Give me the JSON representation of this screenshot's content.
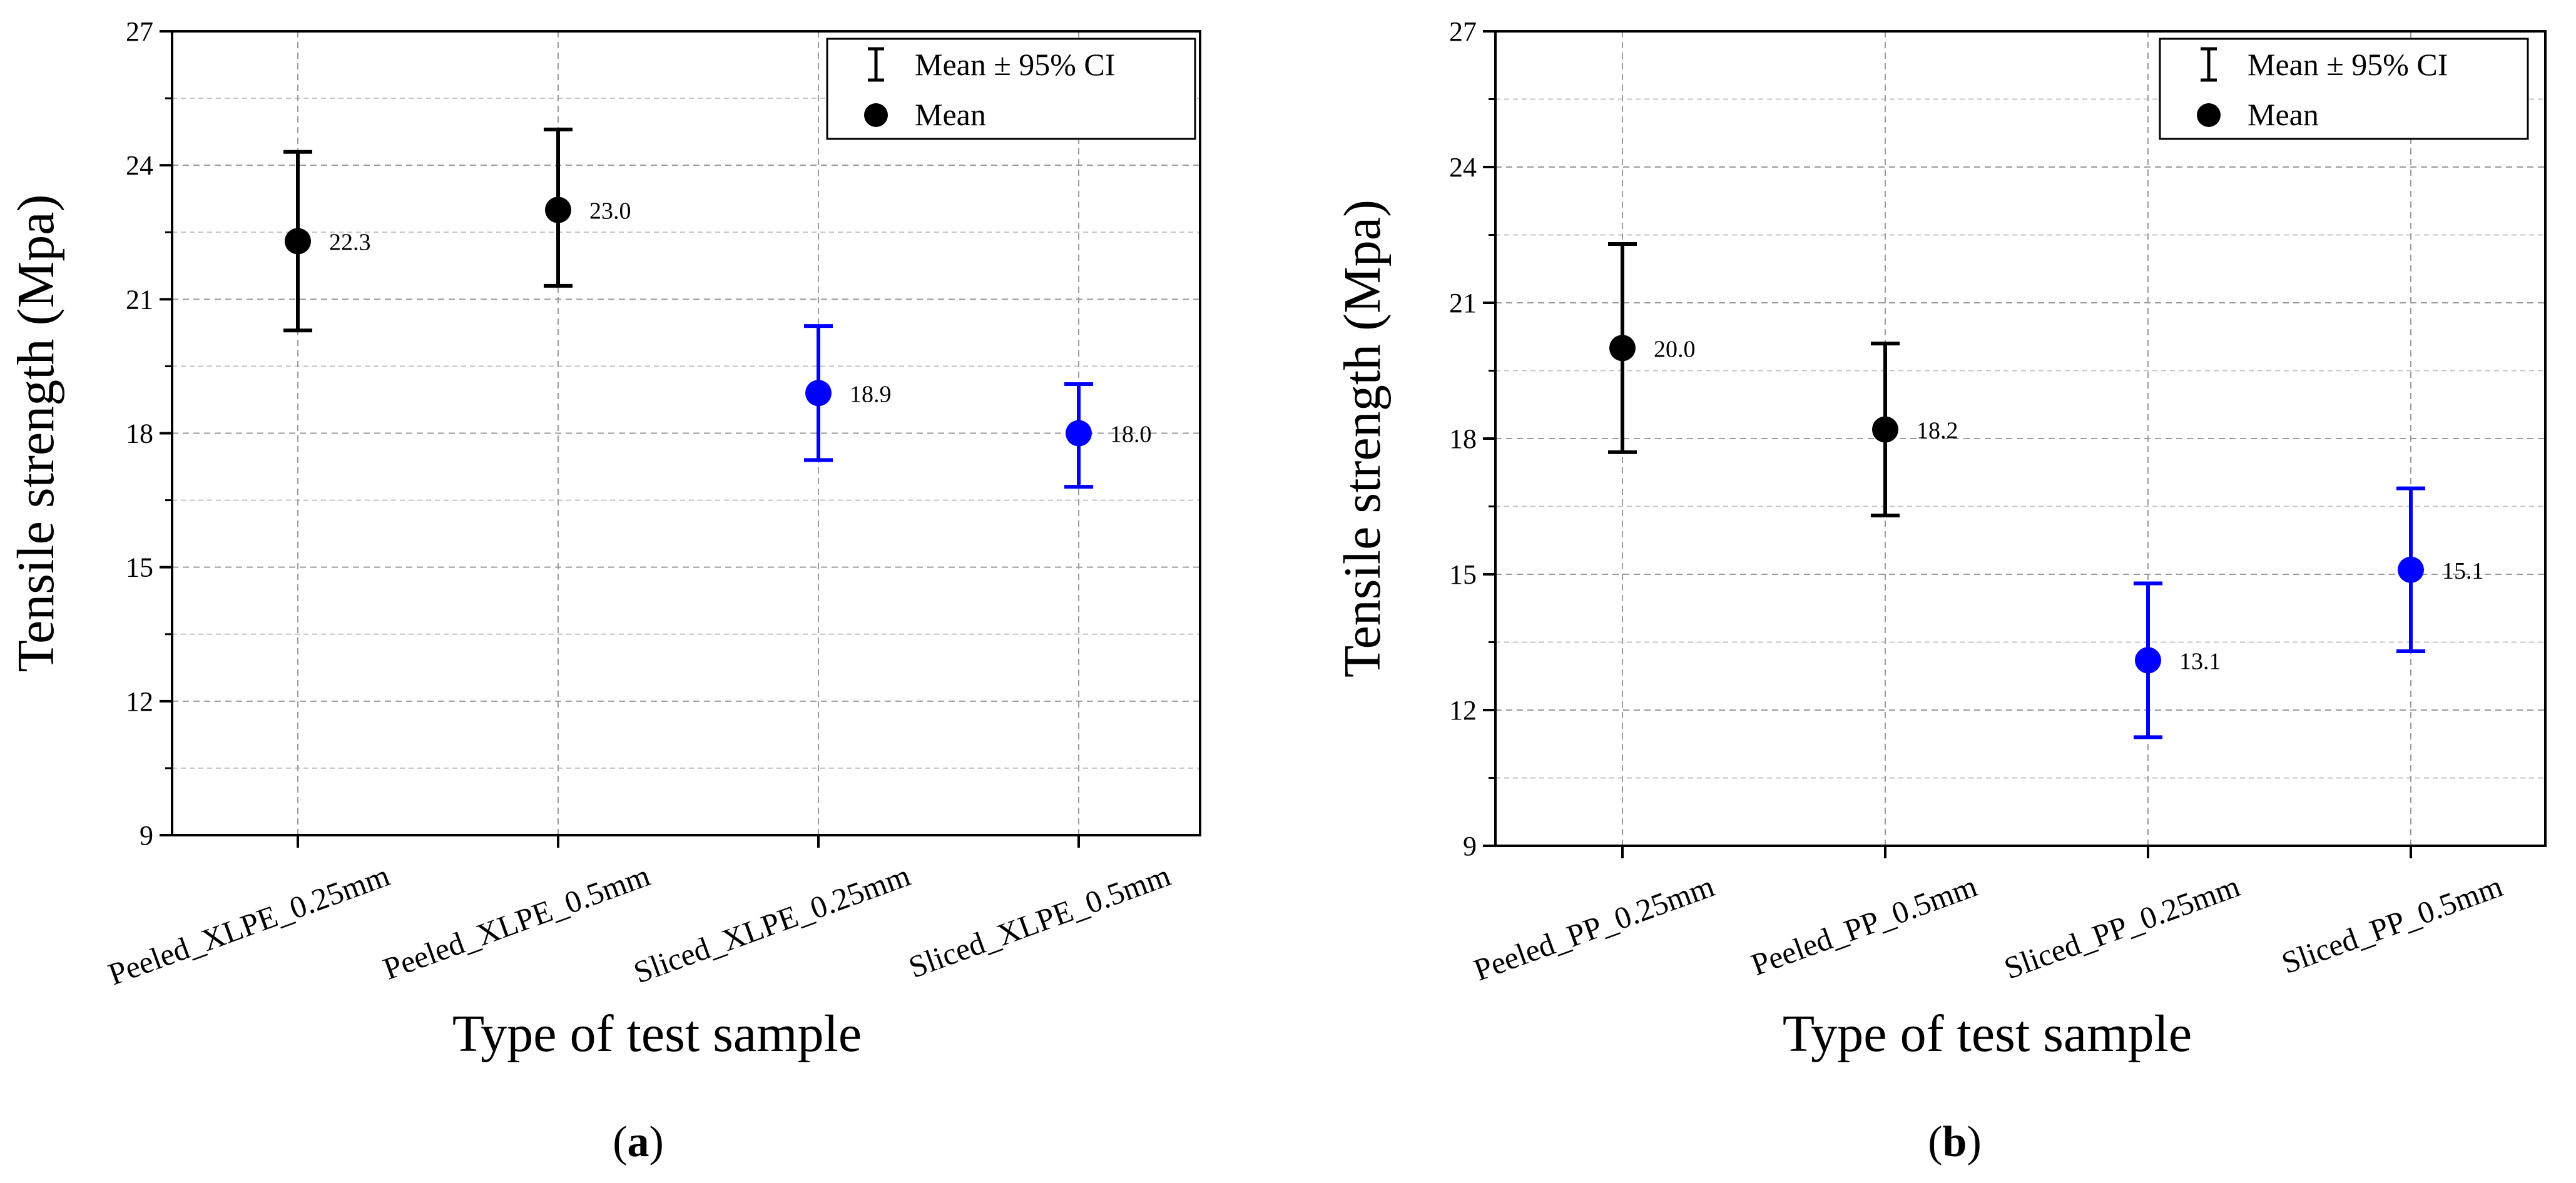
{
  "chart_data": [
    {
      "type": "scatter",
      "title": "",
      "panel_label": "a",
      "xlabel": "Type of test sample",
      "ylabel": "Tensile strength (Mpa)",
      "ylim": [
        9,
        27
      ],
      "yticks": [
        9,
        12,
        15,
        18,
        21,
        24,
        27
      ],
      "grid": true,
      "legend": {
        "position": "top-right",
        "entries": [
          {
            "label": "Mean ± 95% CI",
            "marker": "errorbar"
          },
          {
            "label": "Mean",
            "marker": "circle"
          }
        ]
      },
      "categories": [
        "Peeled_XLPE_0.25mm",
        "Peeled_XLPE_0.5mm",
        "Sliced_XLPE_0.25mm",
        "Sliced_XLPE_0.5mm"
      ],
      "means": [
        22.3,
        23.0,
        18.9,
        18.0
      ],
      "labels": [
        "22.3",
        "23.0",
        "18.9",
        "18.0"
      ],
      "ci_lower": [
        20.3,
        21.3,
        17.4,
        16.8
      ],
      "ci_upper": [
        24.3,
        24.8,
        20.4,
        19.1
      ],
      "colors": [
        "#000000",
        "#000000",
        "#0000ff",
        "#0000ff"
      ]
    },
    {
      "type": "scatter",
      "title": "",
      "panel_label": "b",
      "xlabel": "Type of test sample",
      "ylabel": "Tensile strength (Mpa)",
      "ylim": [
        9,
        27
      ],
      "yticks": [
        9,
        12,
        15,
        18,
        21,
        24,
        27
      ],
      "grid": true,
      "legend": {
        "position": "top-right",
        "entries": [
          {
            "label": "Mean ± 95% CI",
            "marker": "errorbar"
          },
          {
            "label": "Mean",
            "marker": "circle"
          }
        ]
      },
      "categories": [
        "Peeled_PP_0.25mm",
        "Peeled_PP_0.5mm",
        "Sliced_PP_0.25mm",
        "Sliced_PP_0.5mm"
      ],
      "means": [
        20.0,
        18.2,
        13.1,
        15.1
      ],
      "labels": [
        "20.0",
        "18.2",
        "13.1",
        "15.1"
      ],
      "ci_lower": [
        17.7,
        16.3,
        11.4,
        13.3
      ],
      "ci_upper": [
        22.3,
        20.1,
        14.8,
        16.9
      ],
      "colors": [
        "#000000",
        "#000000",
        "#0000ff",
        "#0000ff"
      ]
    }
  ]
}
